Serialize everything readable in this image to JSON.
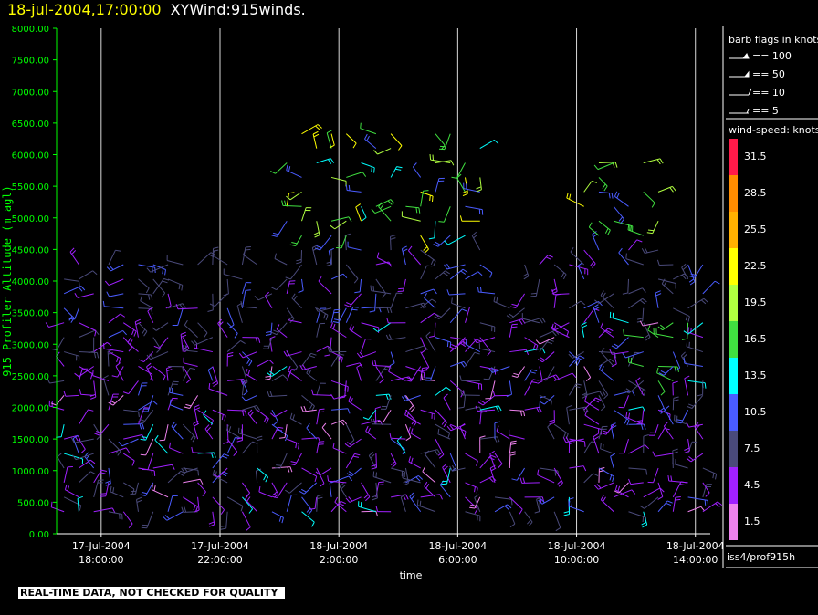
{
  "header": {
    "date_text": "18-jul-2004,17:00:00",
    "title_text": "XYWind:915winds."
  },
  "disclaimer": "REAL-TIME DATA, NOT CHECKED FOR QUALITY",
  "legend": {
    "barb_title": "barb flags in knots",
    "barbs": [
      {
        "label": "== 100",
        "kind": "flag100"
      },
      {
        "label": "== 50",
        "kind": "flag50"
      },
      {
        "label": "== 10",
        "kind": "full"
      },
      {
        "label": "== 5",
        "kind": "half"
      }
    ],
    "speed_title": "wind-speed: knots",
    "speed_classes": [
      {
        "label": "31.5",
        "color": "#ff1a4a"
      },
      {
        "label": "28.5",
        "color": "#ff8c00"
      },
      {
        "label": "25.5",
        "color": "#ffb000"
      },
      {
        "label": "22.5",
        "color": "#ffff00"
      },
      {
        "label": "19.5",
        "color": "#b0ff40"
      },
      {
        "label": "16.5",
        "color": "#40e040"
      },
      {
        "label": "13.5",
        "color": "#00ffff"
      },
      {
        "label": "10.5",
        "color": "#4a5cff"
      },
      {
        "label": "7.5",
        "color": "#4a4a7a"
      },
      {
        "label": "4.5",
        "color": "#a020ff"
      },
      {
        "label": "1.5",
        "color": "#ee82ee"
      }
    ],
    "source": "iss4/prof915h"
  },
  "colors": {
    "axis": "#00ff00",
    "background": "#000000",
    "gridline": "#ffffff",
    "text": "#ffffff",
    "title_date": "#ffff00"
  },
  "chart_data": {
    "type": "wind-barb time-height plot",
    "ylabel": "915 Profiler Altitude (m agl)",
    "xlabel": "time",
    "ylim": [
      0,
      8000
    ],
    "yticks": [
      "0.00",
      "500.00",
      "1000.00",
      "1500.00",
      "2000.00",
      "2500.00",
      "3000.00",
      "3500.00",
      "4000.00",
      "4500.00",
      "5000.00",
      "5500.00",
      "6000.00",
      "6500.00",
      "7000.00",
      "7500.00",
      "8000.00"
    ],
    "xlim_hours": [
      -1.5,
      20.5
    ],
    "xticks": [
      {
        "hour": 0,
        "date": "17-Jul-2004",
        "time": "18:00:00"
      },
      {
        "hour": 4,
        "date": "17-Jul-2004",
        "time": "22:00:00"
      },
      {
        "hour": 8,
        "date": "18-Jul-2004",
        "time": "2:00:00"
      },
      {
        "hour": 12,
        "date": "18-Jul-2004",
        "time": "6:00:00"
      },
      {
        "hour": 16,
        "date": "18-Jul-2004",
        "time": "10:00:00"
      },
      {
        "hour": 20,
        "date": "18-Jul-2004",
        "time": "14:00:00"
      }
    ],
    "vertical_gridlines": true
  }
}
